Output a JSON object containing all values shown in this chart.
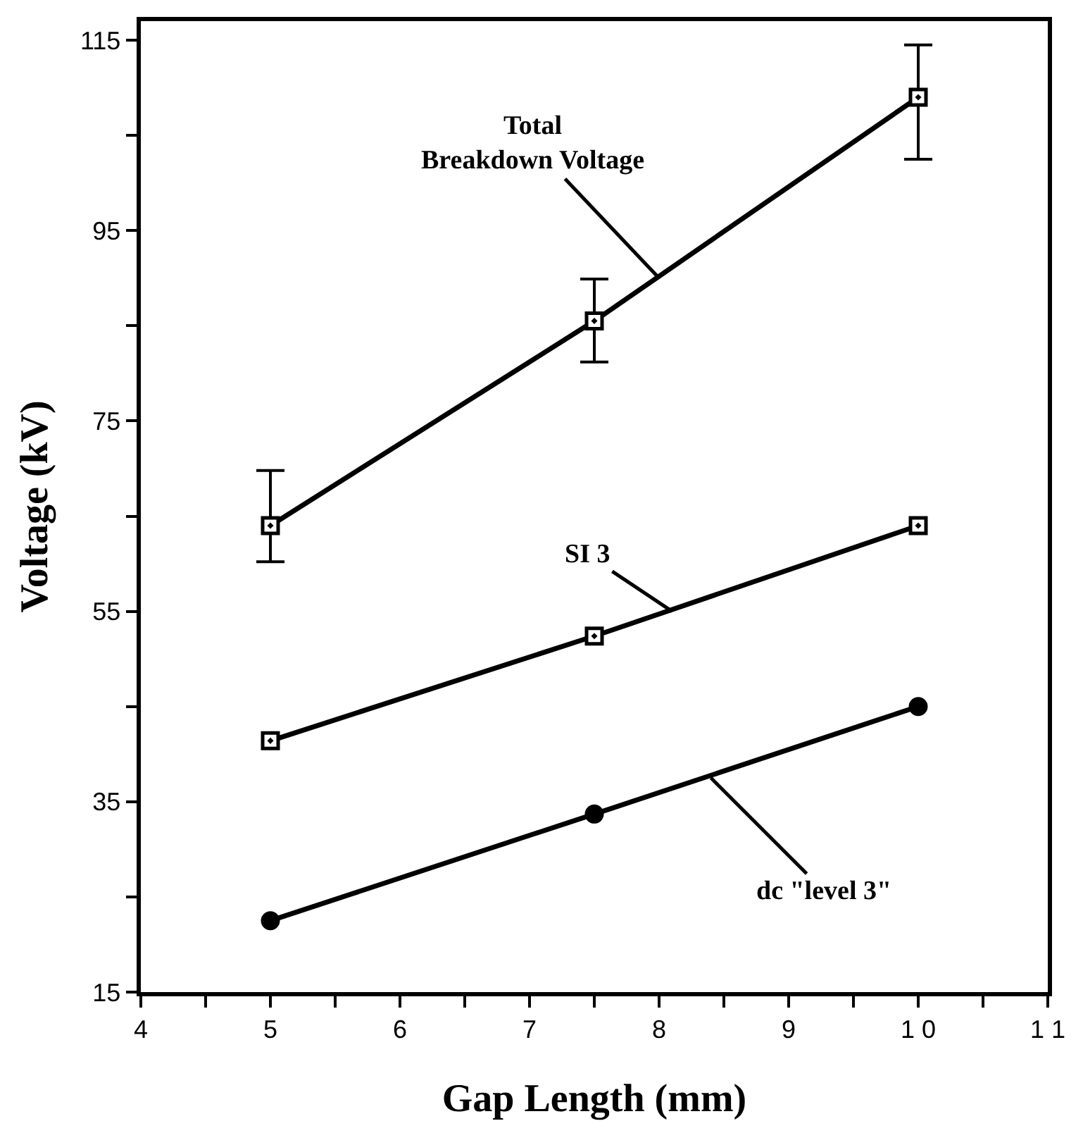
{
  "chart_data": {
    "type": "line",
    "xlabel": "Gap Length (mm)",
    "ylabel": "Voltage (kV)",
    "x": [
      5,
      7.5,
      10
    ],
    "series": [
      {
        "color": "#000000",
        "marker": "square",
        "values": [
          64,
          85.5,
          109
        ],
        "errors": [
          [
            60.2,
            69.8
          ],
          [
            81.2,
            89.9
          ],
          [
            102.5,
            114.5
          ]
        ]
      },
      {
        "color": "#000000",
        "marker": "square",
        "values": [
          41.4,
          52.4,
          64
        ]
      },
      {
        "color": "#000000",
        "marker": "circle",
        "values": [
          22.5,
          33.7,
          45
        ]
      }
    ],
    "annotations": [
      {
        "text": "Total\nBreakdown Voltage",
        "x": 8,
        "y": 90
      },
      {
        "text": "SI 3",
        "x": 8.1,
        "y": 55
      },
      {
        "text": "dc \"level 3\"",
        "x": 8.4,
        "y": 37.5
      }
    ],
    "xlim": [
      4,
      11
    ],
    "ylim": [
      15,
      117
    ],
    "xticks": [
      4,
      {
        "value": 4.5,
        "label": null
      },
      5,
      {
        "value": 5.5,
        "label": null
      },
      6,
      {
        "value": 6.5,
        "label": null
      },
      7,
      {
        "value": 7.5,
        "label": null
      },
      8,
      {
        "value": 8.5,
        "label": null
      },
      9,
      {
        "value": 9.5,
        "label": null
      },
      {
        "value": 10,
        "label": "1 0"
      },
      {
        "value": 10.5,
        "label": null
      },
      {
        "value": 11,
        "label": "1 1"
      }
    ],
    "yticks": [
      15,
      {
        "value": 25,
        "label": null
      },
      35,
      {
        "value": 45,
        "label": null
      },
      55,
      {
        "value": 65,
        "label": null
      },
      75,
      {
        "value": 85,
        "label": null
      },
      95,
      {
        "value": 105,
        "label": null
      },
      115
    ],
    "line_style": "solid"
  }
}
